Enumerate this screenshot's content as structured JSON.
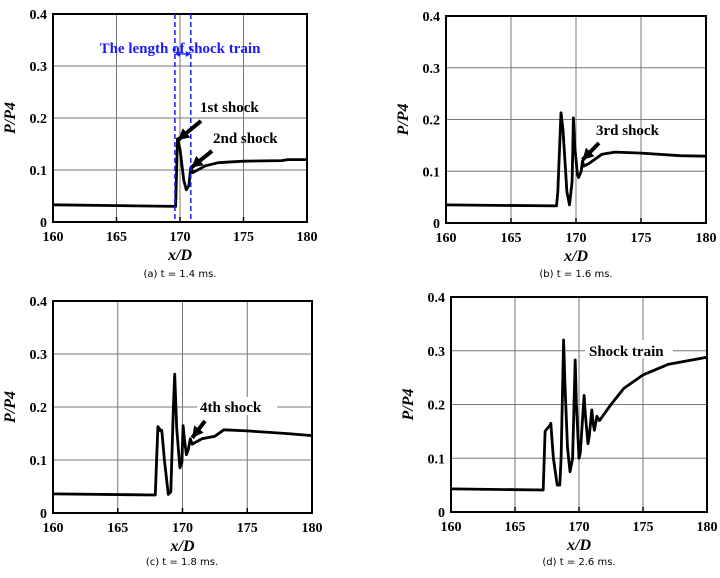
{
  "chart_data": [
    {
      "type": "line",
      "caption": "(a) t = 1.4 ms.",
      "xlabel": "x/D",
      "ylabel": "P/P4",
      "xlim": [
        160,
        180
      ],
      "ylim": [
        0,
        0.4
      ],
      "xticks": [
        "160",
        "165",
        "170",
        "175",
        "180"
      ],
      "yticks": [
        "0",
        "0.1",
        "0.2",
        "0.3",
        "0.4"
      ],
      "grid": true,
      "line_color": "#000000",
      "x": [
        160,
        169.6,
        169.65,
        169.8,
        170,
        170.3,
        170.5,
        170.7,
        170.85,
        171,
        172,
        173,
        175,
        178,
        178.5,
        180
      ],
      "y": [
        0.033,
        0.03,
        0.03,
        0.16,
        0.14,
        0.08,
        0.062,
        0.07,
        0.105,
        0.095,
        0.108,
        0.114,
        0.117,
        0.118,
        0.12,
        0.12
      ],
      "annotations": [
        "The length of shock train",
        "1st shock",
        "2nd shock"
      ],
      "shock_train_bounds": [
        169.6,
        170.85
      ],
      "annotation_color": "#1a1aff"
    },
    {
      "type": "line",
      "caption": "(b) t = 1.6 ms.",
      "xlabel": "x/D",
      "ylabel": "P/P4",
      "xlim": [
        160,
        180
      ],
      "ylim": [
        0,
        0.4
      ],
      "xticks": [
        "160",
        "165",
        "170",
        "175",
        "180"
      ],
      "yticks": [
        "0",
        "0.1",
        "0.2",
        "0.3",
        "0.4"
      ],
      "grid": true,
      "line_color": "#000000",
      "x": [
        160,
        168.5,
        168.6,
        168.85,
        169,
        169.3,
        169.5,
        169.7,
        169.8,
        169.9,
        170.1,
        170.2,
        170.4,
        170.5,
        170.6,
        171,
        172,
        173,
        175,
        178,
        180
      ],
      "y": [
        0.035,
        0.033,
        0.06,
        0.213,
        0.18,
        0.06,
        0.035,
        0.08,
        0.203,
        0.15,
        0.095,
        0.088,
        0.1,
        0.12,
        0.11,
        0.115,
        0.133,
        0.137,
        0.135,
        0.13,
        0.129
      ],
      "annotations": [
        "3rd shock"
      ]
    },
    {
      "type": "line",
      "caption": "(c) t = 1.8 ms.",
      "xlabel": "x/D",
      "ylabel": "P/P4",
      "xlim": [
        160,
        180
      ],
      "ylim": [
        0,
        0.4
      ],
      "xticks": [
        "160",
        "165",
        "170",
        "175",
        "180"
      ],
      "yticks": [
        "0",
        "0.1",
        "0.2",
        "0.3",
        "0.4"
      ],
      "grid": true,
      "line_color": "#000000",
      "x": [
        160,
        167.9,
        168,
        168.1,
        168.2,
        168.3,
        168.4,
        168.6,
        168.9,
        169.1,
        169.3,
        169.4,
        169.55,
        169.8,
        169.95,
        170.05,
        170.15,
        170.3,
        170.45,
        170.6,
        170.75,
        171.5,
        172.5,
        173.2,
        175,
        178,
        180
      ],
      "y": [
        0.036,
        0.034,
        0.1,
        0.163,
        0.16,
        0.155,
        0.156,
        0.1,
        0.035,
        0.04,
        0.2,
        0.262,
        0.16,
        0.085,
        0.095,
        0.165,
        0.14,
        0.11,
        0.12,
        0.14,
        0.13,
        0.14,
        0.145,
        0.157,
        0.155,
        0.15,
        0.146
      ],
      "annotations": [
        "4th shock"
      ]
    },
    {
      "type": "line",
      "caption": "(d) t = 2.6 ms.",
      "xlabel": "x/D",
      "ylabel": "P/P4",
      "xlim": [
        160,
        180
      ],
      "ylim": [
        0,
        0.4
      ],
      "xticks": [
        "160",
        "165",
        "170",
        "175",
        "180"
      ],
      "yticks": [
        "0",
        "0.1",
        "0.2",
        "0.3",
        "0.4"
      ],
      "grid": true,
      "line_color": "#000000",
      "x": [
        160,
        167.2,
        167.35,
        167.5,
        167.7,
        167.8,
        168,
        168.3,
        168.5,
        168.6,
        168.8,
        168.9,
        169.1,
        169.3,
        169.5,
        169.7,
        169.8,
        170,
        170.1,
        170.4,
        170.5,
        170.7,
        170.8,
        171,
        171.1,
        171.2,
        171.4,
        171.6,
        172.5,
        173.5,
        175,
        177,
        180
      ],
      "y": [
        0.043,
        0.041,
        0.15,
        0.155,
        0.16,
        0.165,
        0.1,
        0.05,
        0.05,
        0.1,
        0.32,
        0.24,
        0.12,
        0.075,
        0.1,
        0.283,
        0.2,
        0.1,
        0.11,
        0.217,
        0.18,
        0.127,
        0.14,
        0.19,
        0.165,
        0.152,
        0.178,
        0.17,
        0.2,
        0.23,
        0.255,
        0.275,
        0.288
      ],
      "annotations": [
        "Shock train"
      ]
    }
  ]
}
